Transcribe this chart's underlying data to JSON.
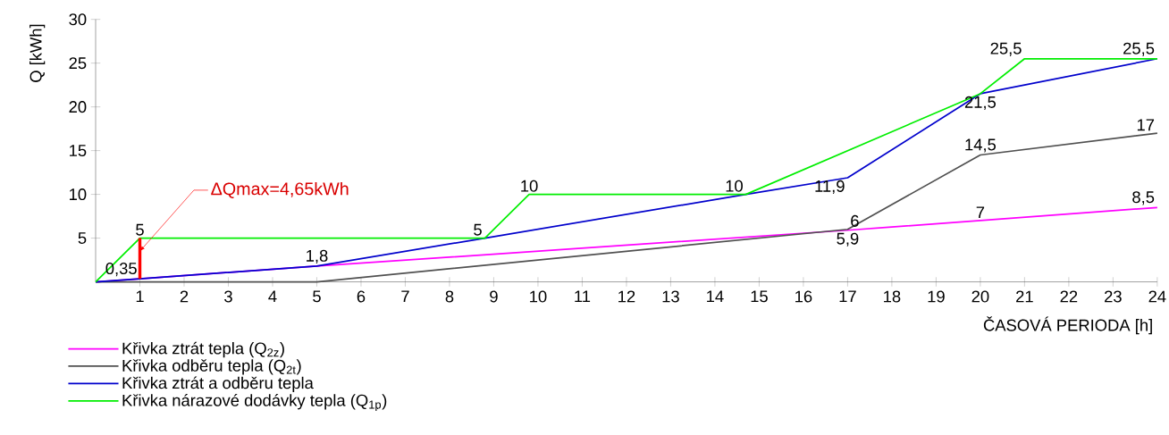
{
  "chart_data": {
    "type": "line",
    "xlabel": "ČASOVÁ PERIODA [h]",
    "ylabel": "Q [kWh]",
    "xlim": [
      0,
      24
    ],
    "ylim": [
      0,
      30
    ],
    "xticks": [
      1,
      2,
      3,
      4,
      5,
      6,
      7,
      8,
      9,
      10,
      11,
      12,
      13,
      14,
      15,
      16,
      17,
      18,
      19,
      20,
      21,
      22,
      23,
      24
    ],
    "yticks": [
      5,
      10,
      15,
      20,
      25,
      30
    ],
    "marker": "none",
    "line_style": "solid",
    "legend": "bottom left",
    "series": [
      {
        "name": "Křivka ztrát tepla (Q$_{2z}$)",
        "color": "#ff00ff",
        "x": [
          0,
          1,
          5,
          17,
          20,
          24
        ],
        "values": [
          0,
          0.35,
          1.8,
          5.9,
          7,
          8.5
        ]
      },
      {
        "name": "Křivka odběru tepla (Q$_{2t}$)",
        "color": "#505050",
        "x": [
          0,
          5,
          17,
          20,
          24
        ],
        "values": [
          0,
          0,
          6,
          14.5,
          17
        ]
      },
      {
        "name": "Křivka ztrát a odběru tepla",
        "color": "#0000cc",
        "x": [
          0,
          1,
          5,
          8.8,
          14.7,
          17,
          20,
          24
        ],
        "values": [
          0,
          0.35,
          1.8,
          5,
          10,
          11.9,
          21.5,
          25.5
        ]
      },
      {
        "name": "Křivka nárazové dodávky tepla (Q$_{1p}$)",
        "color": "#00ee00",
        "x": [
          0,
          1,
          8.8,
          9.8,
          14.7,
          20,
          21,
          24
        ],
        "values": [
          0,
          5,
          5,
          10,
          10,
          21.5,
          25.5,
          25.5
        ]
      },
      {
        "color": "#ff0000",
        "x": [
          1,
          1
        ],
        "values": [
          0.35,
          5
        ]
      }
    ],
    "annotations": [
      {
        "text": "ΔQmax=4,65kWh",
        "x": 1,
        "y": 3.5
      },
      {
        "text": "5",
        "x": 1,
        "y": 5
      },
      {
        "text": "0,35",
        "x": 1,
        "y": 0.35
      },
      {
        "text": "1,8",
        "x": 5,
        "y": 1.8
      },
      {
        "text": "5",
        "x": 8.8,
        "y": 5
      },
      {
        "text": "10",
        "x": 9.8,
        "y": 10
      },
      {
        "text": "10",
        "x": 14.7,
        "y": 10
      },
      {
        "text": "11,9",
        "x": 17,
        "y": 11.9
      },
      {
        "text": "6",
        "x": 17,
        "y": 6
      },
      {
        "text": "5,9",
        "x": 17,
        "y": 5.9
      },
      {
        "text": "7",
        "x": 20,
        "y": 7
      },
      {
        "text": "14,5",
        "x": 20,
        "y": 14.5
      },
      {
        "text": "21,5",
        "x": 20,
        "y": 21.5
      },
      {
        "text": "25,5",
        "x": 21,
        "y": 25.5
      },
      {
        "text": "25,5",
        "x": 24,
        "y": 25.5
      },
      {
        "text": "17",
        "x": 24,
        "y": 17
      },
      {
        "text": "8,5",
        "x": 24,
        "y": 8.5
      }
    ]
  }
}
